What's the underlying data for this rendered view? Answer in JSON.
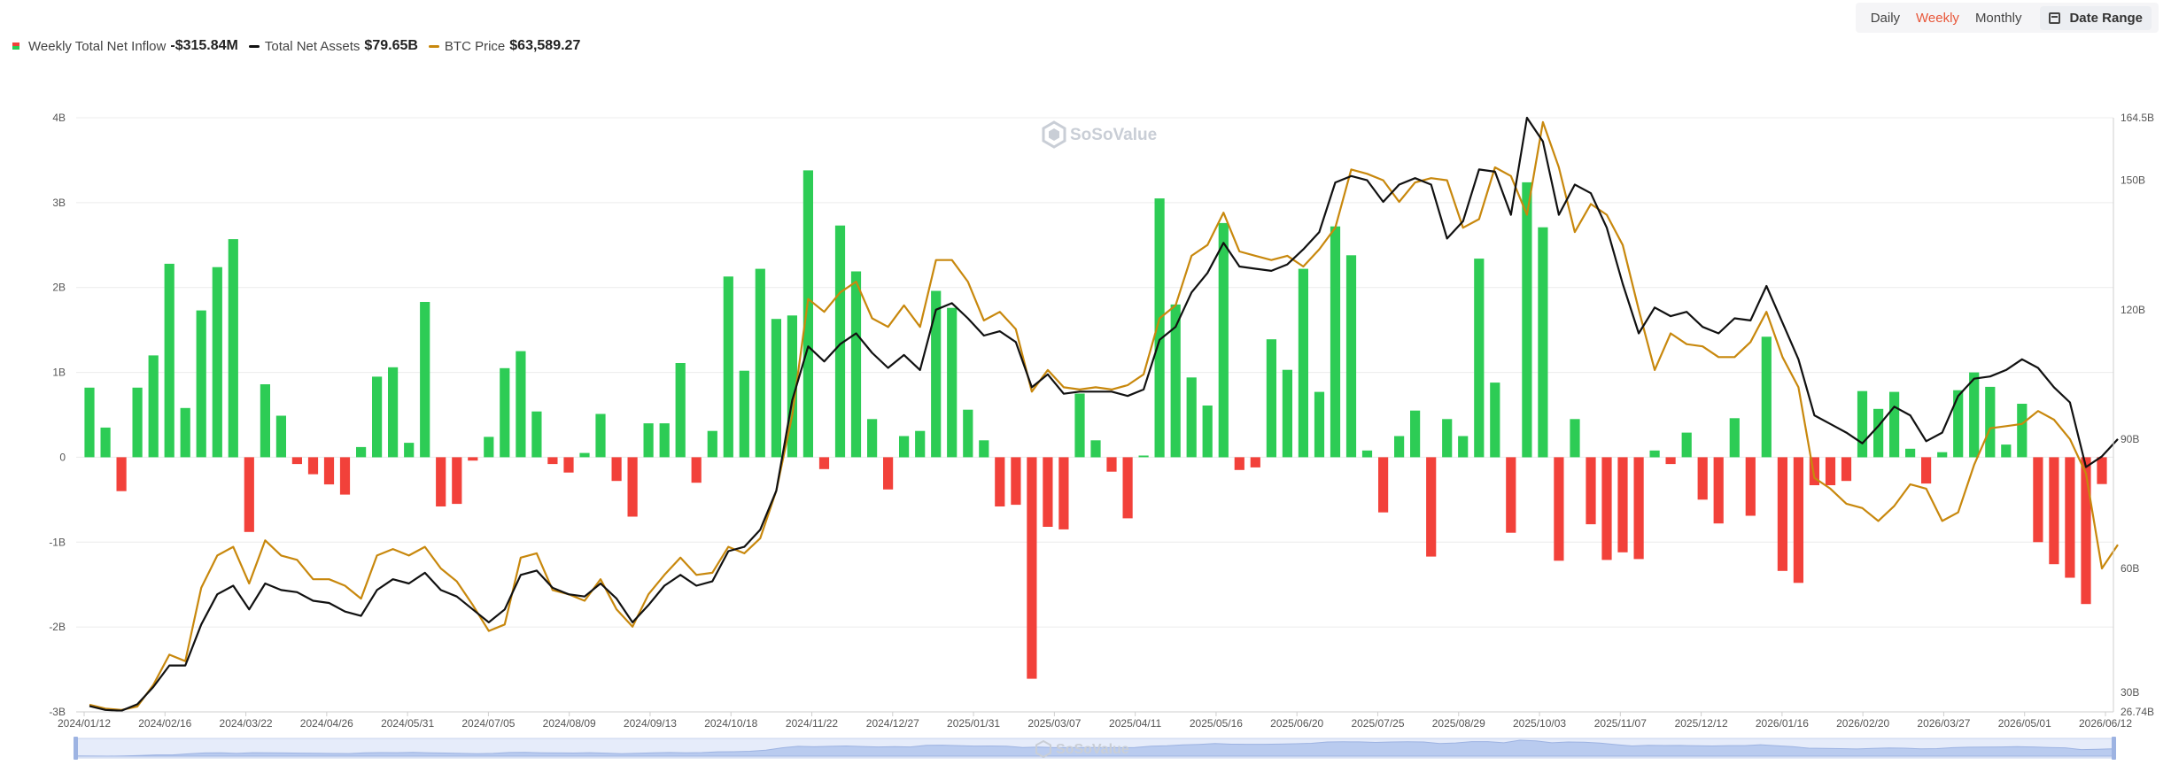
{
  "legend": {
    "inflow": {
      "label": "Weekly Total Net Inflow",
      "value": "-$315.84M",
      "pos_color": "#2dcc55",
      "neg_color": "#f2413a"
    },
    "assets": {
      "label": "Total Net Assets",
      "value": "$79.65B",
      "color": "#111111"
    },
    "btc": {
      "label": "BTC Price",
      "value": "$63,589.27",
      "color": "#c8880d"
    }
  },
  "toolbar": {
    "daily": "Daily",
    "weekly": "Weekly",
    "monthly": "Monthly",
    "date_range": "Date Range",
    "active": "Weekly",
    "date_range_icon": "calendar-icon"
  },
  "watermark": {
    "brand": "SoSoValue",
    "icon": "sosovalue-logo-icon"
  },
  "chart_data": {
    "type": "bar",
    "left_axis": {
      "ticks": [
        "4B",
        "3B",
        "2B",
        "1B",
        "0",
        "-1B",
        "-2B",
        "-3B"
      ],
      "range": [
        -3,
        4
      ],
      "unit": "B"
    },
    "right_axis": {
      "ticks": [
        "164.5B",
        "150B",
        "120B",
        "90B",
        "60B",
        "30B",
        "26.74B"
      ],
      "range": [
        26.74,
        164.5
      ],
      "unit": "B"
    },
    "x_ticks": [
      "2024/01/12",
      "2024/02/16",
      "2024/03/22",
      "2024/04/26",
      "2024/05/31",
      "2024/07/05",
      "2024/08/09",
      "2024/09/13",
      "2024/10/18",
      "2024/11/22",
      "2024/12/27",
      "2025/01/31",
      "2025/03/07",
      "2025/04/11",
      "2025/05/16",
      "2025/06/20",
      "2025/07/25",
      "2025/08/29",
      "2025/10/03",
      "2025/11/07",
      "2025/12/12",
      "2026/01/16",
      "2026/02/20",
      "2026/03/27",
      "2026/05/01",
      "2026/06/12"
    ],
    "grid": true,
    "legend_position": "top-left",
    "series": [
      {
        "name": "Weekly Total Net Inflow",
        "type": "bar",
        "axis": "left",
        "unit": "B",
        "values": [
          0.82,
          0.35,
          -0.4,
          0.82,
          1.2,
          2.28,
          0.58,
          1.73,
          2.24,
          2.57,
          -0.88,
          0.86,
          0.49,
          -0.08,
          -0.2,
          -0.32,
          -0.44,
          0.12,
          0.95,
          1.06,
          0.17,
          1.83,
          -0.58,
          -0.55,
          -0.04,
          0.24,
          1.05,
          1.25,
          0.54,
          -0.08,
          -0.18,
          0.05,
          0.51,
          -0.28,
          -0.7,
          0.4,
          0.4,
          1.11,
          -0.3,
          0.31,
          2.13,
          1.02,
          2.22,
          1.63,
          1.67,
          3.38,
          -0.14,
          2.73,
          2.19,
          0.45,
          -0.38,
          0.25,
          0.31,
          1.96,
          1.76,
          0.56,
          0.2,
          -0.58,
          -0.56,
          -2.61,
          -0.82,
          -0.85,
          0.75,
          0.2,
          -0.17,
          -0.72,
          0.02,
          3.05,
          1.8,
          0.94,
          0.61,
          2.76,
          -0.15,
          -0.12,
          1.39,
          1.03,
          2.22,
          0.77,
          2.72,
          2.38,
          0.08,
          -0.65,
          0.25,
          0.55,
          -1.17,
          0.45,
          0.25,
          2.34,
          0.88,
          -0.89,
          3.24,
          2.71,
          -1.22,
          0.45,
          -0.79,
          -1.21,
          -1.12,
          -1.2,
          0.08,
          -0.08,
          0.29,
          -0.5,
          -0.78,
          0.46,
          -0.69,
          1.42,
          -1.34,
          -1.48,
          -0.33,
          -0.33,
          -0.28,
          0.78,
          0.57,
          0.77,
          0.1,
          -0.31,
          0.06,
          0.79,
          1.0,
          0.83,
          0.15,
          0.63,
          -1.0,
          -1.26,
          -1.42,
          -1.73,
          -0.316
        ]
      },
      {
        "name": "Total Net Assets",
        "type": "line",
        "axis": "right",
        "unit": "B",
        "values": [
          28.1,
          27.2,
          27.0,
          28.5,
          32.5,
          37.5,
          37.5,
          47.0,
          54.0,
          56.0,
          50.5,
          56.5,
          55.0,
          54.5,
          52.5,
          52.0,
          50.0,
          49.0,
          55.0,
          57.5,
          56.5,
          59.0,
          55.0,
          53.5,
          50.5,
          47.5,
          50.5,
          58.5,
          59.5,
          55.5,
          54.0,
          53.5,
          56.5,
          53.0,
          47.5,
          51.5,
          56.0,
          58.5,
          56.0,
          57.0,
          64.0,
          65.0,
          69.0,
          78.0,
          99.0,
          111.5,
          108.0,
          112.0,
          114.5,
          110.0,
          106.5,
          109.5,
          106.0,
          120.0,
          121.5,
          118.0,
          114.0,
          115.0,
          112.5,
          102.0,
          105.0,
          100.5,
          101.0,
          101.0,
          101.0,
          100.0,
          101.5,
          113.0,
          116.0,
          124.0,
          128.5,
          135.5,
          130.0,
          129.5,
          129.0,
          130.5,
          134.0,
          138.0,
          149.5,
          151.0,
          150.0,
          145.0,
          149.0,
          150.5,
          149.0,
          136.5,
          140.5,
          152.5,
          152.0,
          142.0,
          164.5,
          159.0,
          142.0,
          149.0,
          147.0,
          139.0,
          126.0,
          114.5,
          120.5,
          118.5,
          119.5,
          116.0,
          114.5,
          118.0,
          117.5,
          125.5,
          117.0,
          108.5,
          95.5,
          93.5,
          91.5,
          89.0,
          93.0,
          97.5,
          95.5,
          89.5,
          91.5,
          100.0,
          104.0,
          104.5,
          106.0,
          108.5,
          106.5,
          102.0,
          98.5,
          83.5,
          86.0,
          90.0
        ]
      },
      {
        "name": "BTC Price",
        "type": "line",
        "axis": "right",
        "unit": "BTC price mapped to right axis scale",
        "values": [
          28.4,
          27.5,
          27.2,
          28.0,
          33.0,
          40.0,
          38.5,
          55.5,
          63.0,
          65.0,
          56.5,
          66.5,
          63.0,
          62.0,
          57.5,
          57.5,
          56.0,
          53.0,
          63.0,
          64.5,
          63.0,
          65.0,
          60.0,
          57.0,
          51.5,
          45.5,
          47.0,
          62.5,
          63.5,
          55.0,
          54.0,
          52.5,
          57.5,
          50.5,
          46.5,
          54.0,
          58.5,
          62.5,
          58.5,
          59.0,
          65.0,
          63.5,
          67.0,
          78.0,
          95.5,
          122.5,
          119.5,
          124.0,
          126.5,
          118.0,
          116.0,
          121.0,
          116.0,
          131.5,
          131.5,
          126.5,
          117.5,
          119.5,
          115.5,
          101.0,
          106.0,
          102.0,
          101.5,
          102.0,
          101.5,
          102.5,
          105.0,
          118.0,
          121.0,
          132.5,
          135.0,
          142.5,
          133.5,
          132.5,
          131.5,
          132.5,
          130.0,
          134.0,
          139.0,
          152.5,
          151.5,
          150.0,
          145.0,
          149.5,
          150.5,
          150.0,
          139.0,
          141.0,
          153.0,
          151.0,
          142.0,
          163.5,
          153.0,
          138.0,
          144.5,
          142.0,
          135.0,
          120.0,
          106.0,
          114.5,
          112.0,
          111.5,
          109.0,
          109.0,
          112.5,
          119.5,
          109.0,
          102.0,
          81.0,
          78.5,
          75.0,
          74.0,
          71.0,
          74.5,
          79.5,
          78.5,
          71.0,
          73.0,
          84.0,
          92.5,
          93.0,
          93.5,
          96.5,
          94.5,
          90.0,
          82.0,
          60.0,
          65.5
        ]
      }
    ]
  }
}
